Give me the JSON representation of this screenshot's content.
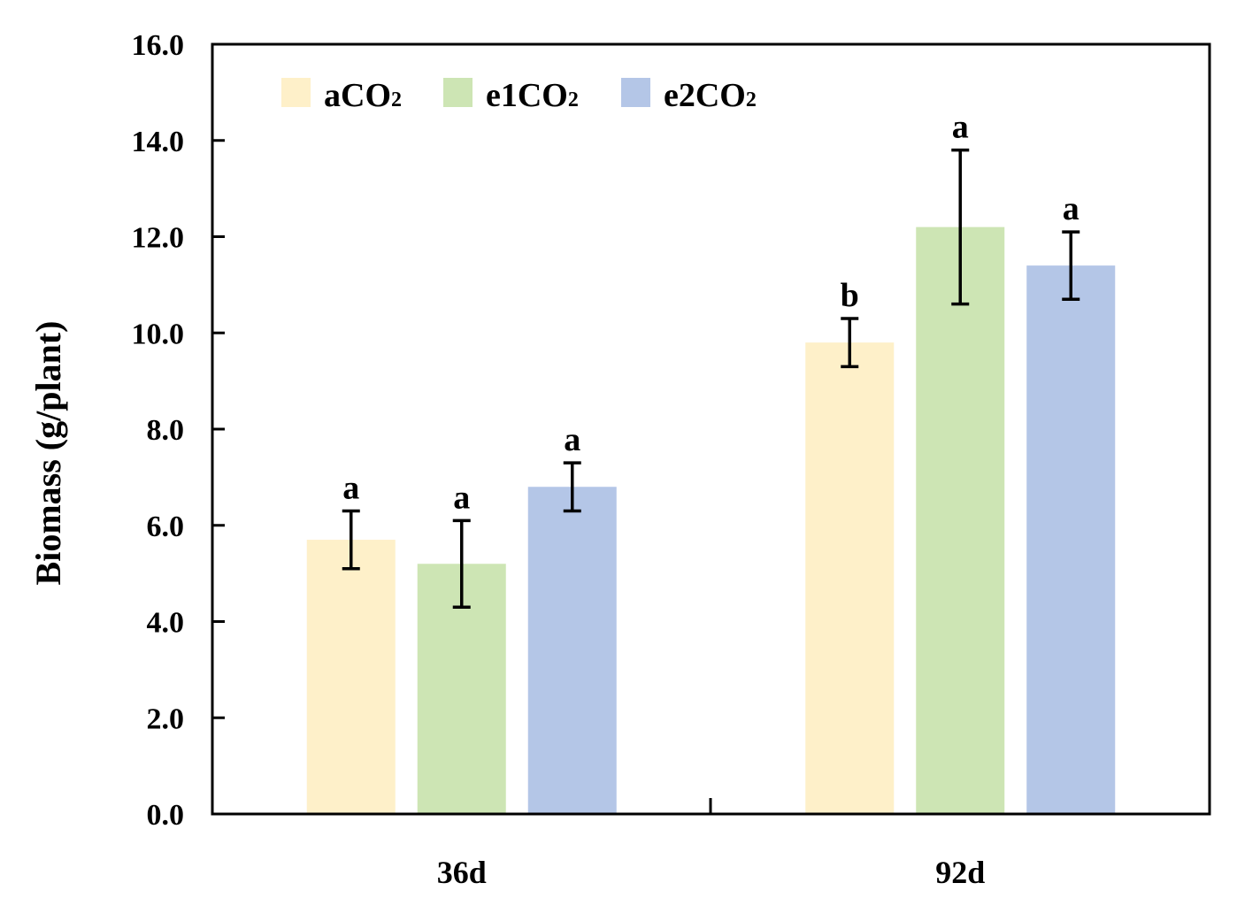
{
  "chart_data": {
    "type": "bar",
    "title": "",
    "xlabel": "",
    "ylabel": "Biomass (g/plant)",
    "ylim": [
      0,
      16
    ],
    "yticks": [
      "0.0",
      "2.0",
      "4.0",
      "6.0",
      "8.0",
      "10.0",
      "12.0",
      "14.0",
      "16.0"
    ],
    "categories": [
      "36d",
      "92d"
    ],
    "legend_position": "top-left",
    "series": [
      {
        "name": "aCO2",
        "label_main": "aCO",
        "label_sub": "2",
        "color": "#fef0c9",
        "values": [
          5.7,
          9.8
        ],
        "error": [
          0.6,
          0.5
        ],
        "significance": [
          "a",
          "b"
        ]
      },
      {
        "name": "e1CO2",
        "label_main": "e1CO",
        "label_sub": "2",
        "color": "#cde5b4",
        "values": [
          5.2,
          12.2
        ],
        "error": [
          0.9,
          1.6
        ],
        "significance": [
          "a",
          "a"
        ]
      },
      {
        "name": "e2CO2",
        "label_main": "e2CO",
        "label_sub": "2",
        "color": "#b4c6e7",
        "values": [
          6.8,
          11.4
        ],
        "error": [
          0.5,
          0.7
        ],
        "significance": [
          "a",
          "a"
        ]
      }
    ]
  }
}
